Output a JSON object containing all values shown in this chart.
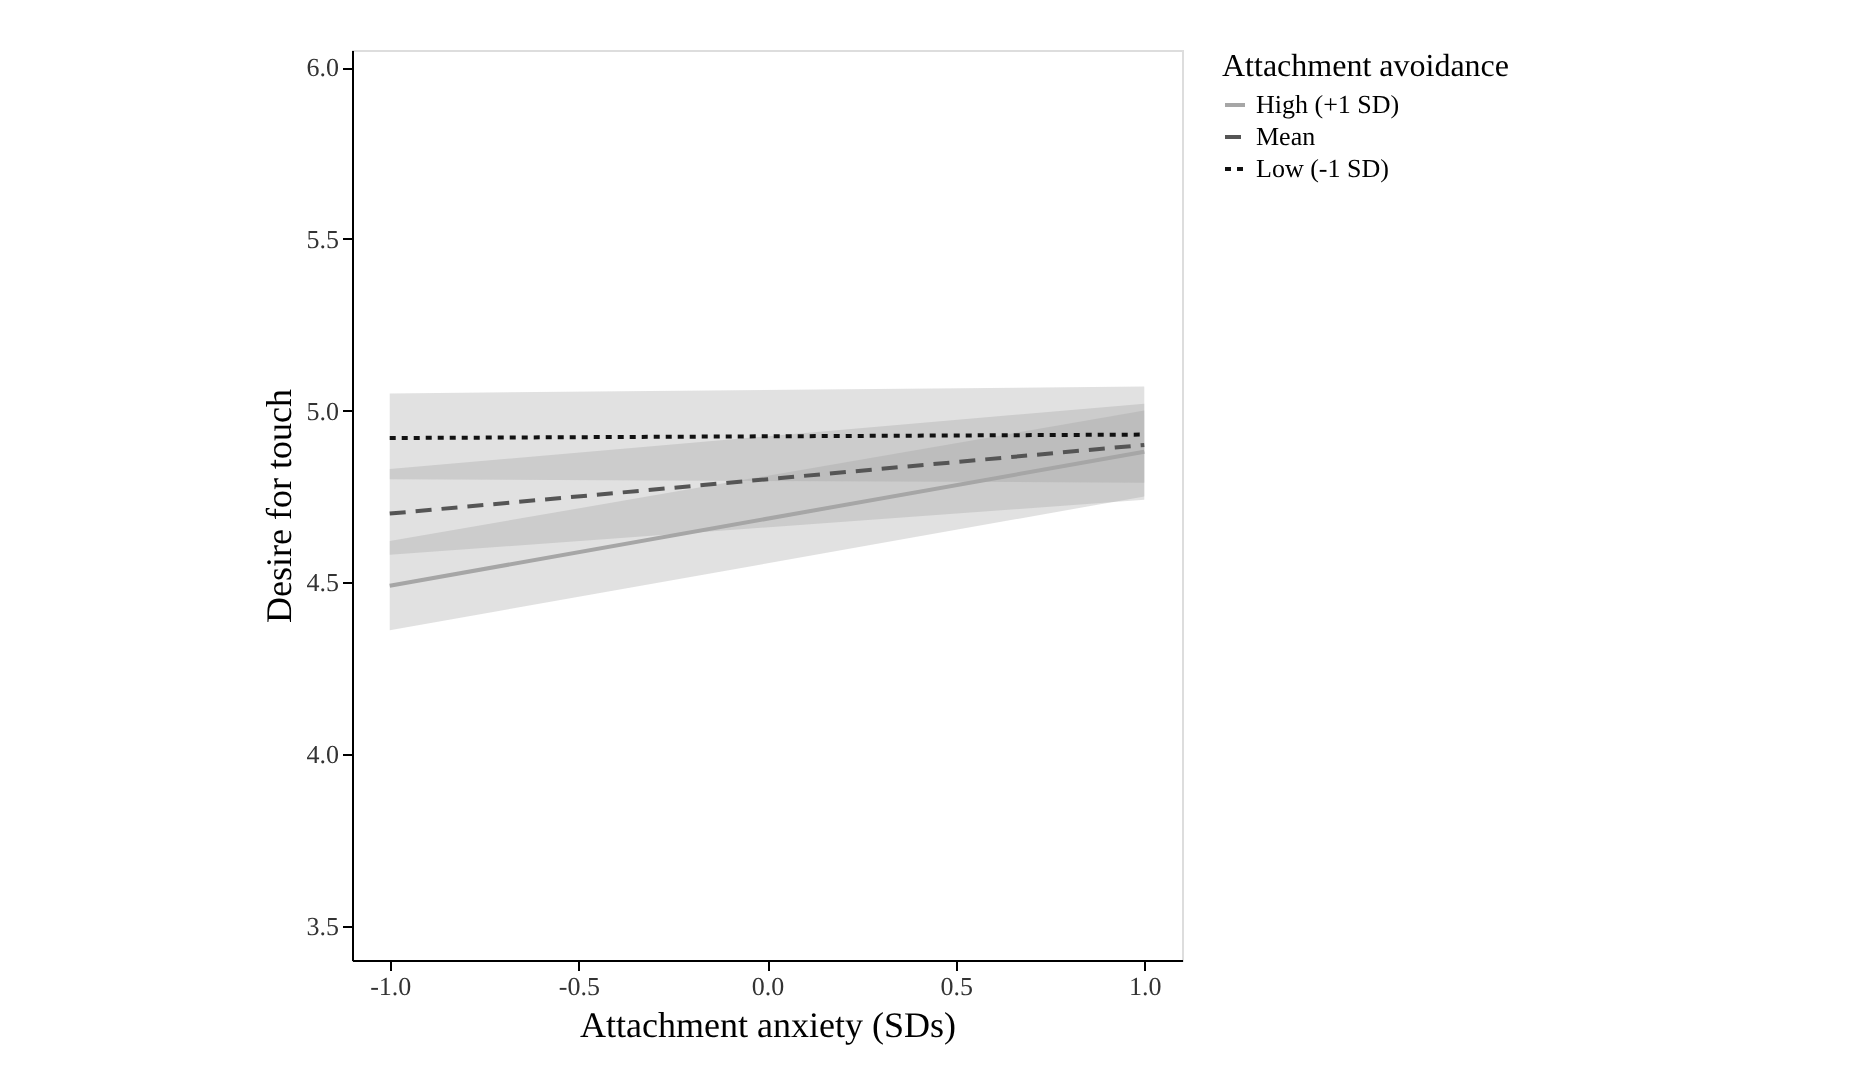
{
  "chart_data": {
    "type": "line",
    "xlabel": "Attachment anxiety (SDs)",
    "ylabel": "Desire for touch",
    "legend_title": "Attachment avoidance",
    "x": [
      -1.0,
      1.0
    ],
    "series": [
      {
        "name": "High (+1 SD)",
        "color": "#a6a6a6",
        "line_style": "solid",
        "values": [
          4.49,
          4.88
        ],
        "lower": [
          4.36,
          4.75
        ],
        "upper": [
          4.62,
          5.0
        ]
      },
      {
        "name": "Mean",
        "color": "#555555",
        "line_style": "dashed",
        "values": [
          4.7,
          4.9
        ],
        "lower": [
          4.58,
          4.74
        ],
        "upper": [
          4.83,
          5.02
        ]
      },
      {
        "name": "Low (-1 SD)",
        "color": "#111111",
        "line_style": "dotted",
        "values": [
          4.92,
          4.93
        ],
        "lower": [
          4.8,
          4.79
        ],
        "upper": [
          5.05,
          5.07
        ]
      }
    ],
    "xlim": [
      -1.1,
      1.1
    ],
    "xticks": [
      {
        "value": -1.0,
        "label": "-1.0"
      },
      {
        "value": -0.5,
        "label": "-0.5"
      },
      {
        "value": 0,
        "label": "0.0"
      },
      {
        "value": 0.5,
        "label": "0.5"
      },
      {
        "value": 1.0,
        "label": "1.0"
      }
    ],
    "ylim": [
      3.4,
      6.05
    ],
    "yticks": [
      3.5,
      {
        "value": 4.0,
        "label": "4.0"
      },
      4.5,
      {
        "value": 5.0,
        "label": "5.0"
      },
      5.5,
      {
        "value": 6.0,
        "label": "6.0"
      }
    ],
    "grid": false,
    "legend": "right"
  }
}
